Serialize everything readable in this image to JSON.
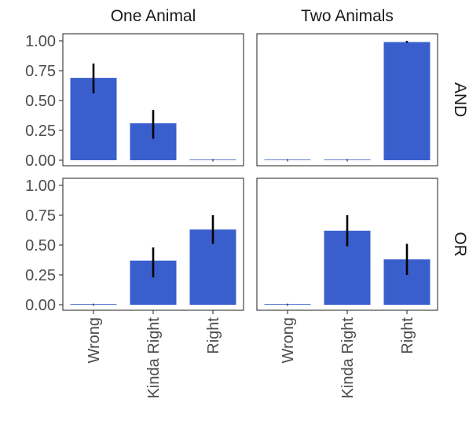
{
  "chart_data": {
    "type": "bar",
    "facet_columns": [
      "One Animal",
      "Two Animals"
    ],
    "facet_rows": [
      "AND",
      "OR"
    ],
    "categories": [
      "Wrong",
      "Kinda Right",
      "Right"
    ],
    "ylim": [
      0,
      1
    ],
    "y_ticks": [
      "0.00",
      "0.25",
      "0.50",
      "0.75",
      "1.00"
    ],
    "bar_color": "#3a5fcd",
    "panels": [
      {
        "column": "One Animal",
        "row": "AND",
        "values": [
          0.69,
          0.31,
          0.0
        ],
        "error_low": [
          0.56,
          0.18,
          0.0
        ],
        "error_high": [
          0.81,
          0.42,
          0.0
        ]
      },
      {
        "column": "Two Animals",
        "row": "AND",
        "values": [
          0.0,
          0.0,
          0.99
        ],
        "error_low": [
          0.0,
          0.0,
          0.985
        ],
        "error_high": [
          0.0,
          0.0,
          1.0
        ]
      },
      {
        "column": "One Animal",
        "row": "OR",
        "values": [
          0.0,
          0.37,
          0.63
        ],
        "error_low": [
          0.0,
          0.23,
          0.51
        ],
        "error_high": [
          0.0,
          0.48,
          0.75
        ]
      },
      {
        "column": "Two Animals",
        "row": "OR",
        "values": [
          0.0,
          0.62,
          0.38
        ],
        "error_low": [
          0.0,
          0.49,
          0.25
        ],
        "error_high": [
          0.0,
          0.75,
          0.51
        ]
      }
    ]
  }
}
